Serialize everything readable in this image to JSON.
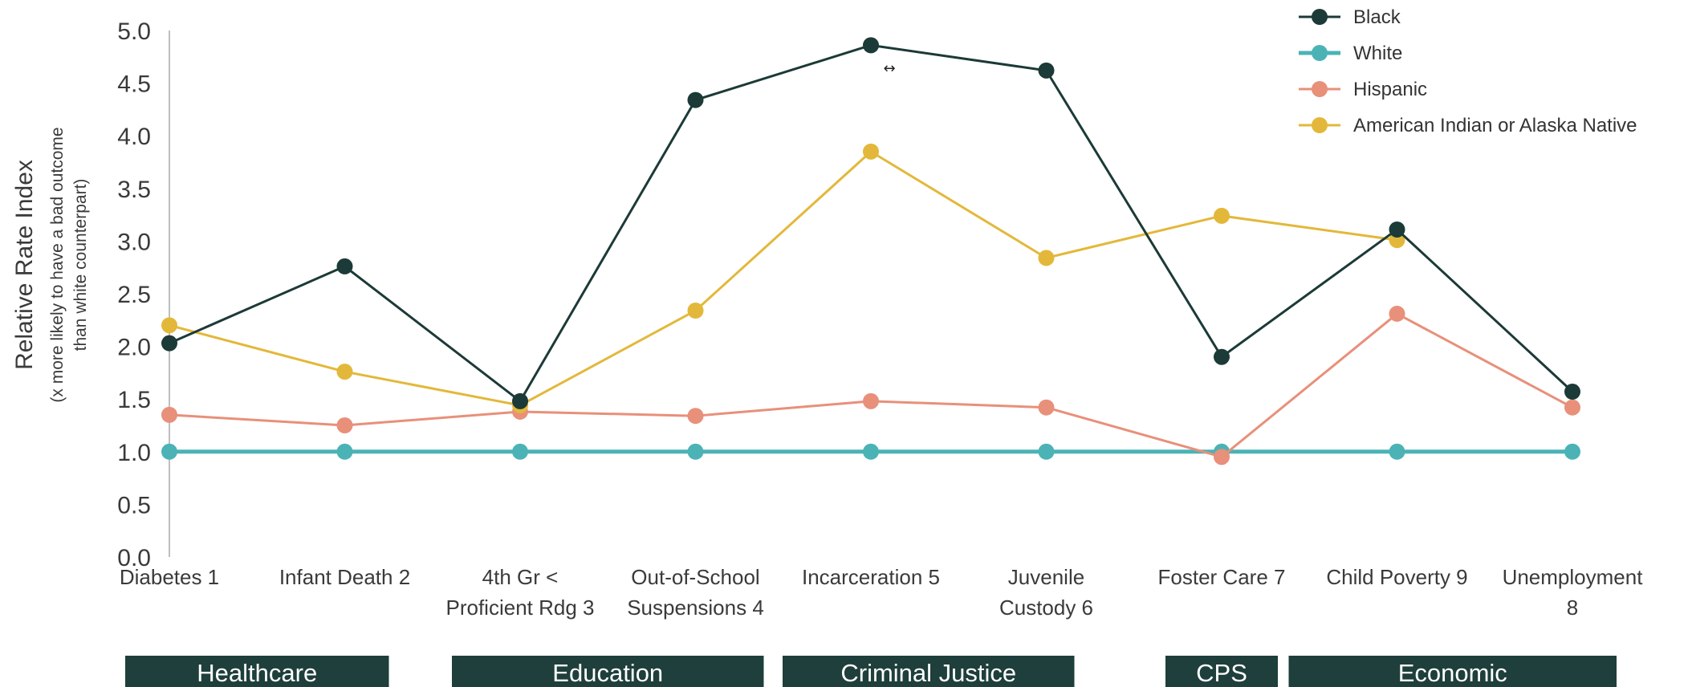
{
  "chart_data": {
    "type": "line",
    "ylabel": "Relative Rate Index",
    "ylabel_sub": [
      "(x more likely to have a bad outcome",
      "than white counterpart)"
    ],
    "ylim": [
      0,
      5
    ],
    "yticks": [
      "0.0",
      "0.5",
      "1.0",
      "1.5",
      "2.0",
      "2.5",
      "3.0",
      "3.5",
      "4.0",
      "4.5",
      "5.0"
    ],
    "categories": [
      [
        "Diabetes 1"
      ],
      [
        "Infant Death 2"
      ],
      [
        "4th Gr <",
        "Proficient Rdg 3"
      ],
      [
        "Out-of-School",
        "Suspensions 4"
      ],
      [
        "Incarceration 5"
      ],
      [
        "Juvenile",
        "Custody 6"
      ],
      [
        "Foster Care 7"
      ],
      [
        "Child Poverty 9"
      ],
      [
        "Unemployment",
        "8"
      ]
    ],
    "series": [
      {
        "name": "Black",
        "color": "#1c3a37",
        "values": [
          2.03,
          2.76,
          1.48,
          4.34,
          4.86,
          4.62,
          1.9,
          3.11,
          1.57
        ]
      },
      {
        "name": "White",
        "color": "#4bb3b6",
        "values": [
          1.0,
          1.0,
          1.0,
          1.0,
          1.0,
          1.0,
          1.0,
          1.0,
          1.0
        ]
      },
      {
        "name": "Hispanic",
        "color": "#e8907a",
        "values": [
          1.35,
          1.25,
          1.38,
          1.34,
          1.48,
          1.42,
          0.95,
          2.31,
          1.42
        ]
      },
      {
        "name": "American Indian or Alaska Native",
        "color": "#e3b83a",
        "values": [
          2.2,
          1.76,
          1.44,
          2.34,
          3.85,
          2.84,
          3.24,
          3.01,
          null
        ]
      }
    ],
    "legend_position": "top-right",
    "grid": false,
    "groups": [
      {
        "label": "Healthcare",
        "span": [
          0,
          1
        ]
      },
      {
        "label": "Education",
        "span": [
          2,
          3
        ]
      },
      {
        "label": "Criminal Justice",
        "span": [
          4,
          5
        ]
      },
      {
        "label": "CPS",
        "span": [
          6,
          6
        ]
      },
      {
        "label": "Economic",
        "span": [
          7,
          8
        ]
      }
    ]
  }
}
